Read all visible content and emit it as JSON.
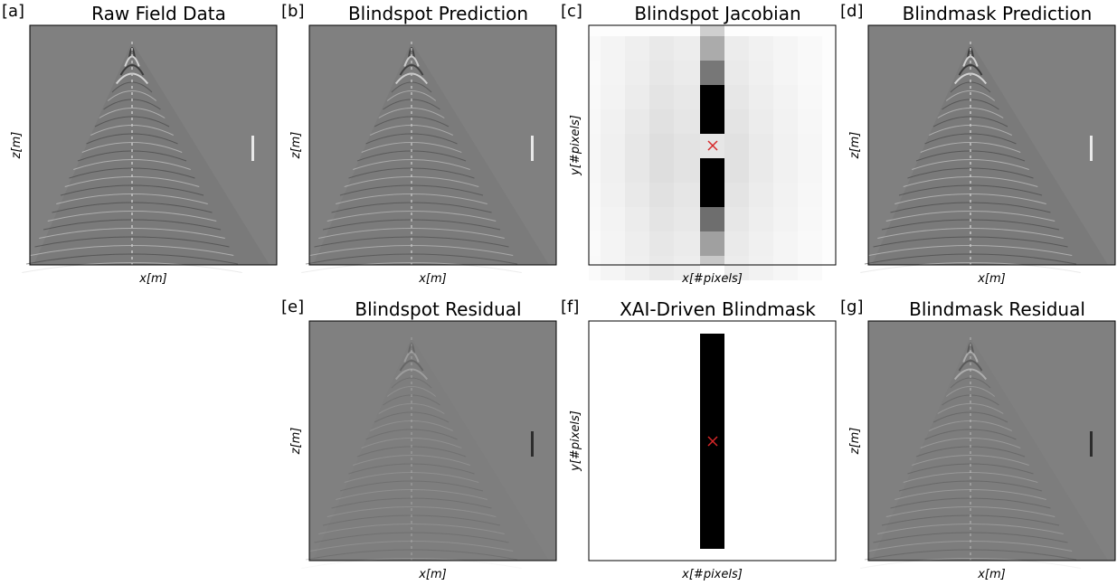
{
  "panels": [
    {
      "label": "[a]",
      "title": "Raw Field Data",
      "xlabel": "x[m]",
      "ylabel": "z[m]"
    },
    {
      "label": "[b]",
      "title": "Blindspot Prediction",
      "xlabel": "x[m]",
      "ylabel": "z[m]"
    },
    {
      "label": "[c]",
      "title": "Blindspot Jacobian",
      "xlabel": "x[#pixels]",
      "ylabel": "y[#pixels]"
    },
    {
      "label": "[d]",
      "title": "Blindmask Prediction",
      "xlabel": "x[m]",
      "ylabel": "z[m]"
    },
    {
      "label": "[e]",
      "title": "Blindspot Residual",
      "xlabel": "x[m]",
      "ylabel": "z[m]"
    },
    {
      "label": "[f]",
      "title": "XAI-Driven Blindmask",
      "xlabel": "x[#pixels]",
      "ylabel": "y[#pixels]"
    },
    {
      "label": "[g]",
      "title": "Blindmask Residual",
      "xlabel": "x[m]",
      "ylabel": "z[m]"
    }
  ]
}
